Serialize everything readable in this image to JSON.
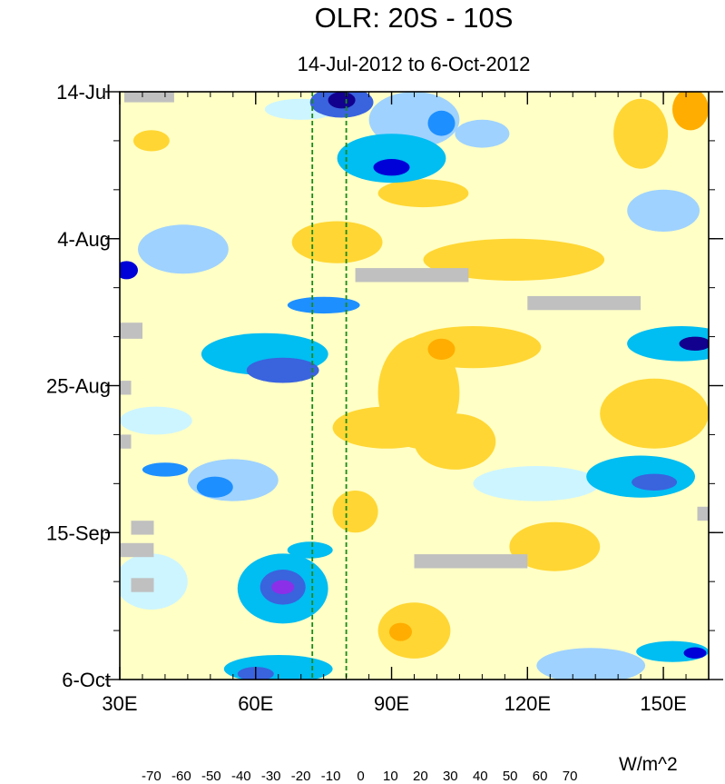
{
  "chart_data": {
    "type": "heatmap",
    "title": "OLR: 20S - 10S",
    "subtitle": "14-Jul-2012 to 6-Oct-2012",
    "x_axis": {
      "range": [
        30,
        160
      ],
      "ticks": [
        {
          "value": 30,
          "label": "30E"
        },
        {
          "value": 60,
          "label": "60E"
        },
        {
          "value": 90,
          "label": "90E"
        },
        {
          "value": 120,
          "label": "120E"
        },
        {
          "value": 150,
          "label": "150E"
        }
      ],
      "minor_step": 5
    },
    "y_axis": {
      "range_days": [
        0,
        84
      ],
      "reversed": true,
      "ticks": [
        {
          "value": 0,
          "label": "14-Jul"
        },
        {
          "value": 21,
          "label": "4-Aug"
        },
        {
          "value": 42,
          "label": "25-Aug"
        },
        {
          "value": 63,
          "label": "15-Sep"
        },
        {
          "value": 84,
          "label": "6-Oct"
        }
      ],
      "minor_step_days": 7
    },
    "reference_lines": [
      {
        "lon": 72.5,
        "color": "#1a8a1a",
        "style": "dashed"
      },
      {
        "lon": 80,
        "color": "#1a8a1a",
        "style": "dashed"
      }
    ],
    "colorbar": {
      "units": "W/m^2",
      "levels": [
        -70,
        -60,
        -50,
        -40,
        -30,
        -20,
        -10,
        0,
        10,
        20,
        30,
        40,
        50,
        60,
        70
      ],
      "colors": [
        "#8c2fe8",
        "#12008f",
        "#0000d8",
        "#3a63de",
        "#1e8fff",
        "#00bdf2",
        "#9fd2ff",
        "#cdf5ff",
        "#ffffc6",
        "#ffd633",
        "#ffad00",
        "#ff6f00",
        "#ff1a00",
        "#d80000",
        "#a0201e",
        "#ff6fbf"
      ]
    },
    "background_value_color": "#ffffc6",
    "missing_color": "#c0c0c0",
    "missing_patches": [
      {
        "lon": [
          31,
          42
        ],
        "day": [
          0,
          1.5
        ]
      },
      {
        "lon": [
          82,
          107
        ],
        "day": [
          25.2,
          27.2
        ]
      },
      {
        "lon": [
          120,
          145
        ],
        "day": [
          29.2,
          31.2
        ]
      },
      {
        "lon": [
          30,
          35
        ],
        "day": [
          33,
          35.3
        ]
      },
      {
        "lon": [
          30,
          32.5
        ],
        "day": [
          41.3,
          43.3
        ]
      },
      {
        "lon": [
          30,
          32.5
        ],
        "day": [
          49,
          51
        ]
      },
      {
        "lon": [
          32.5,
          37.5
        ],
        "day": [
          61.3,
          63.3
        ]
      },
      {
        "lon": [
          30,
          37.5
        ],
        "day": [
          64.5,
          66.5
        ]
      },
      {
        "lon": [
          32.5,
          37.5
        ],
        "day": [
          69.5,
          71.5
        ]
      },
      {
        "lon": [
          95,
          120
        ],
        "day": [
          66.1,
          68.1
        ]
      },
      {
        "lon": [
          157.5,
          160
        ],
        "day": [
          59.3,
          61.3
        ]
      }
    ],
    "anomaly_blobs": [
      {
        "lon": 79,
        "day": 1.5,
        "rlon": 7,
        "rday": 2.2,
        "value": -42
      },
      {
        "lon": 79,
        "day": 1.2,
        "rlon": 3,
        "rday": 1.2,
        "value": -62
      },
      {
        "lon": 70,
        "day": 2.5,
        "rlon": 8,
        "rday": 1.5,
        "value": -8
      },
      {
        "lon": 95,
        "day": 4,
        "rlon": 10,
        "rday": 4,
        "value": -18
      },
      {
        "lon": 101,
        "day": 4.5,
        "rlon": 3,
        "rday": 1.8,
        "value": -35
      },
      {
        "lon": 90,
        "day": 9.5,
        "rlon": 12,
        "rday": 3.5,
        "value": -30
      },
      {
        "lon": 90,
        "day": 10.8,
        "rlon": 4,
        "rday": 1.2,
        "value": -52
      },
      {
        "lon": 110,
        "day": 6,
        "rlon": 6,
        "rday": 2,
        "value": -15
      },
      {
        "lon": 156,
        "day": 2.5,
        "rlon": 4,
        "rday": 3,
        "value": 28
      },
      {
        "lon": 145,
        "day": 6,
        "rlon": 6,
        "rday": 5,
        "value": 13
      },
      {
        "lon": 37,
        "day": 7,
        "rlon": 4,
        "rday": 1.5,
        "value": 15
      },
      {
        "lon": 97,
        "day": 14.5,
        "rlon": 10,
        "rday": 2,
        "value": 15
      },
      {
        "lon": 78,
        "day": 21.5,
        "rlon": 10,
        "rday": 3,
        "value": 15
      },
      {
        "lon": 150,
        "day": 17,
        "rlon": 8,
        "rday": 3,
        "value": -20
      },
      {
        "lon": 31.5,
        "day": 25.5,
        "rlon": 2.5,
        "rday": 1.3,
        "value": -52
      },
      {
        "lon": 44,
        "day": 22.5,
        "rlon": 10,
        "rday": 3.5,
        "value": -12
      },
      {
        "lon": 75,
        "day": 30.5,
        "rlon": 8,
        "rday": 1.2,
        "value": -38
      },
      {
        "lon": 62,
        "day": 37.5,
        "rlon": 14,
        "rday": 3,
        "value": -22
      },
      {
        "lon": 66,
        "day": 39.8,
        "rlon": 8,
        "rday": 1.8,
        "value": -42
      },
      {
        "lon": 108,
        "day": 36.5,
        "rlon": 15,
        "rday": 3,
        "value": 15
      },
      {
        "lon": 101,
        "day": 36.8,
        "rlon": 3,
        "rday": 1.5,
        "value": 28
      },
      {
        "lon": 96,
        "day": 43,
        "rlon": 9,
        "rday": 8,
        "value": 15
      },
      {
        "lon": 89,
        "day": 48,
        "rlon": 12,
        "rday": 3,
        "value": 13
      },
      {
        "lon": 104,
        "day": 50,
        "rlon": 9,
        "rday": 4,
        "value": 12
      },
      {
        "lon": 154,
        "day": 36,
        "rlon": 12,
        "rday": 2.5,
        "value": -30
      },
      {
        "lon": 157,
        "day": 36,
        "rlon": 3.5,
        "rday": 1,
        "value": -62
      },
      {
        "lon": 148,
        "day": 46,
        "rlon": 12,
        "rday": 5,
        "value": 12
      },
      {
        "lon": 145,
        "day": 55,
        "rlon": 12,
        "rday": 3,
        "value": -30
      },
      {
        "lon": 148,
        "day": 55.8,
        "rlon": 5,
        "rday": 1.2,
        "value": -45
      },
      {
        "lon": 55,
        "day": 55.5,
        "rlon": 10,
        "rday": 3,
        "value": -18
      },
      {
        "lon": 51,
        "day": 56.5,
        "rlon": 4,
        "rday": 1.5,
        "value": -35
      },
      {
        "lon": 40,
        "day": 54,
        "rlon": 5,
        "rday": 1,
        "value": -40
      },
      {
        "lon": 66,
        "day": 71,
        "rlon": 10,
        "rday": 5,
        "value": -25
      },
      {
        "lon": 66,
        "day": 70.8,
        "rlon": 5,
        "rday": 2.5,
        "value": -50
      },
      {
        "lon": 66,
        "day": 70.8,
        "rlon": 2.5,
        "rday": 1,
        "value": -72
      },
      {
        "lon": 72,
        "day": 65.5,
        "rlon": 5,
        "rday": 1.2,
        "value": -28
      },
      {
        "lon": 126,
        "day": 65,
        "rlon": 10,
        "rday": 3.5,
        "value": 14
      },
      {
        "lon": 95,
        "day": 77,
        "rlon": 8,
        "rday": 4,
        "value": 15
      },
      {
        "lon": 92,
        "day": 77.2,
        "rlon": 2.5,
        "rday": 1.3,
        "value": 28
      },
      {
        "lon": 65,
        "day": 82.5,
        "rlon": 12,
        "rday": 2,
        "value": -25
      },
      {
        "lon": 60,
        "day": 83.2,
        "rlon": 4,
        "rday": 1,
        "value": -45
      },
      {
        "lon": 152,
        "day": 80,
        "rlon": 8,
        "rday": 1.5,
        "value": -30
      },
      {
        "lon": 157,
        "day": 80.2,
        "rlon": 2.5,
        "rday": 0.8,
        "value": -58
      },
      {
        "lon": 37,
        "day": 70,
        "rlon": 8,
        "rday": 4,
        "value": -10
      },
      {
        "lon": 82,
        "day": 60,
        "rlon": 5,
        "rday": 3,
        "value": 13
      },
      {
        "lon": 38,
        "day": 47,
        "rlon": 8,
        "rday": 2,
        "value": -10
      },
      {
        "lon": 117,
        "day": 24,
        "rlon": 20,
        "rday": 3,
        "value": 12
      },
      {
        "lon": 122,
        "day": 56,
        "rlon": 14,
        "rday": 2.5,
        "value": -10
      },
      {
        "lon": 134,
        "day": 82,
        "rlon": 12,
        "rday": 2.5,
        "value": -12
      }
    ]
  }
}
